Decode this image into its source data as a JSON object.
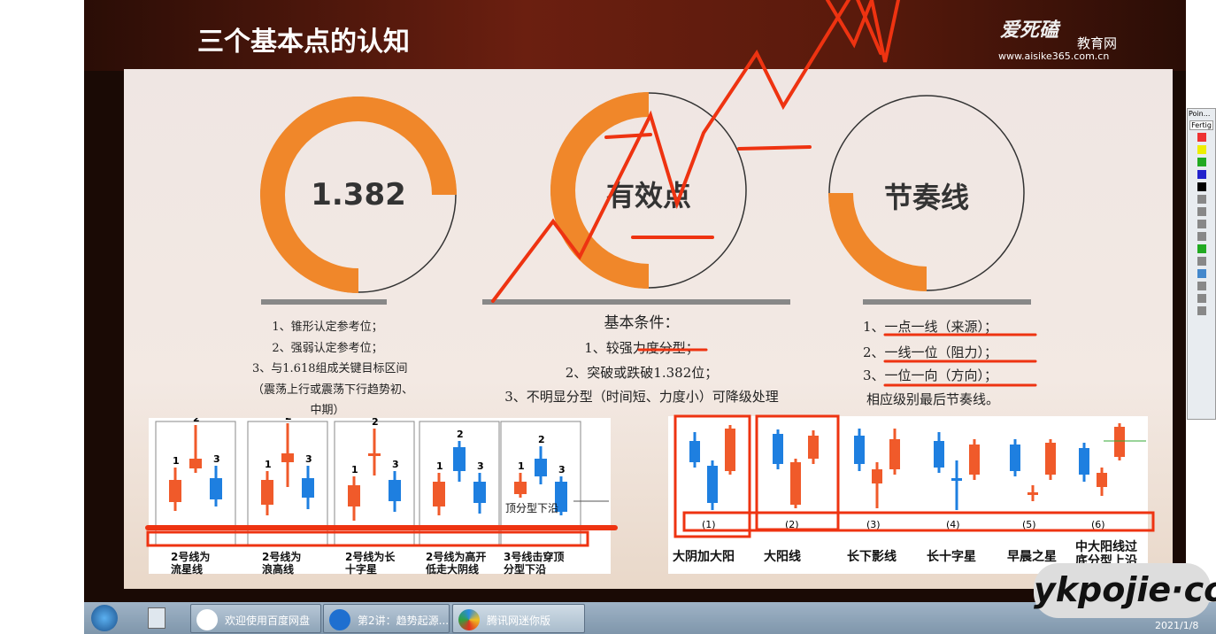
{
  "slide": {
    "title": "三个基本点的认知",
    "logo": "爱死磕",
    "logo_sub": "教育网",
    "url": "www.aisike365.com.cn"
  },
  "circles": [
    {
      "label": "1.382",
      "fill_fraction": 0.75
    },
    {
      "label": "有效点",
      "fill_fraction": 0.5
    },
    {
      "label": "节奏线",
      "fill_fraction": 0.25
    }
  ],
  "col1": [
    "1、锥形认定参考位；",
    "2、强弱认定参考位；",
    "3、与1.618组成关键目标区间",
    "（震荡上行或震荡下行趋势初、",
    "中期）"
  ],
  "col2": {
    "heading": "基本条件：",
    "items": [
      "1、较强力度分型；",
      "2、突破或跌破1.382位；",
      "3、不明显分型（时间短、力度小）可降级处理"
    ]
  },
  "col3": [
    "1、一点一线（来源）；",
    "2、一线一位（阻力）；",
    "3、一位一向（方向）；",
    "相应级别最后节奏线。"
  ],
  "left_chart": {
    "candle_labels": [
      "1",
      "2",
      "3"
    ],
    "note": "顶分型下沿",
    "captions": [
      [
        "2号线为",
        "流星线"
      ],
      [
        "2号线为",
        "浪高线"
      ],
      [
        "2号线为长",
        "十字星"
      ],
      [
        "2号线为高开",
        "低走大阴线"
      ],
      [
        "3号线击穿顶",
        "分型下沿"
      ]
    ]
  },
  "right_chart": {
    "numbers": [
      "(1)",
      "(2)",
      "(3)",
      "(4)",
      "(5)",
      "(6)"
    ],
    "captions": [
      "大阴加大阳",
      "大阳线",
      "长下影线",
      "长十字星",
      "早晨之星",
      "中大阳线过\n底分型上沿"
    ]
  },
  "colors": {
    "orange": "#f0872a",
    "red_candle": "#f05a2a",
    "blue_candle": "#1e7fe0",
    "annotation": "#ee3311"
  },
  "taskbar": {
    "items": [
      "欢迎使用百度网盘",
      "第2讲：趋势起源...",
      "腾讯网迷你版"
    ],
    "clock": "2021/1/8"
  },
  "toolbar": {
    "title": "Poin...",
    "button": "Fertig"
  },
  "watermark": "ykpojie·com"
}
